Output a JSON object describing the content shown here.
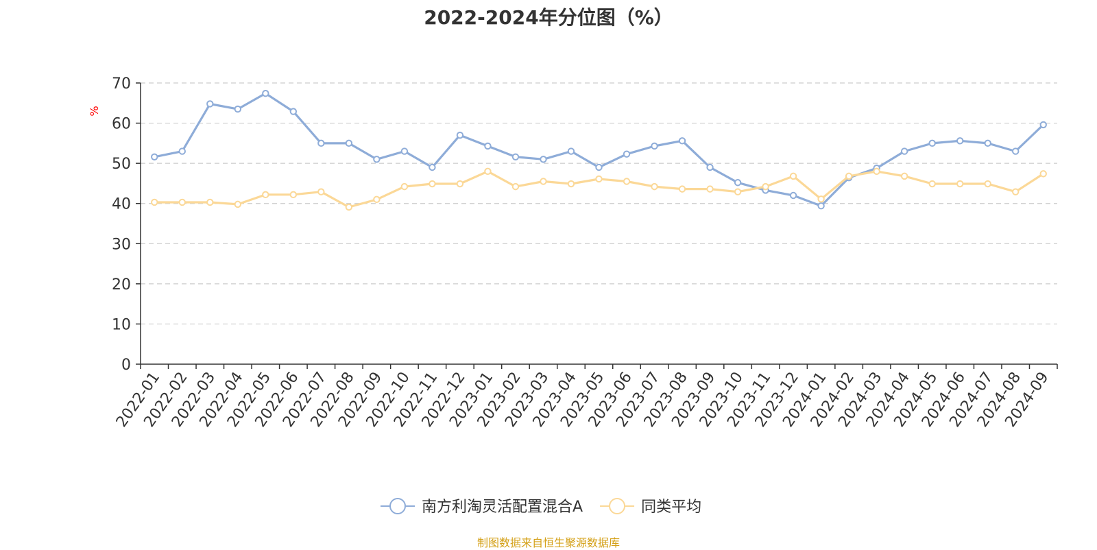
{
  "chart_data": {
    "type": "line",
    "title": "2022-2024年分位图（%）",
    "ylabel": "%",
    "xlabel": "",
    "ylim": [
      0,
      70
    ],
    "yticks": [
      0,
      10,
      20,
      30,
      40,
      50,
      60,
      70
    ],
    "grid": true,
    "legend_position": "bottom-center",
    "categories": [
      "2022-01",
      "2022-02",
      "2022-03",
      "2022-04",
      "2022-05",
      "2022-06",
      "2022-07",
      "2022-08",
      "2022-09",
      "2022-10",
      "2022-11",
      "2022-12",
      "2023-01",
      "2023-02",
      "2023-03",
      "2023-04",
      "2023-05",
      "2023-06",
      "2023-07",
      "2023-08",
      "2023-09",
      "2023-10",
      "2023-11",
      "2023-12",
      "2024-01",
      "2024-02",
      "2024-03",
      "2024-04",
      "2024-05",
      "2024-06",
      "2024-07",
      "2024-08",
      "2024-09"
    ],
    "series": [
      {
        "name": "南方利淘灵活配置混合A",
        "color": "#8eacd8",
        "values": [
          51.6,
          53.0,
          64.8,
          63.5,
          67.4,
          62.9,
          55.0,
          55.0,
          51.0,
          53.0,
          49.0,
          57.0,
          54.3,
          51.6,
          51.0,
          53.0,
          49.0,
          52.3,
          54.3,
          55.6,
          49.0,
          45.2,
          43.3,
          42.0,
          39.4,
          46.4,
          48.8,
          53.0,
          55.0,
          55.6,
          55.0,
          53.0,
          59.6
        ]
      },
      {
        "name": "同类平均",
        "color": "#fbd897",
        "values": [
          40.3,
          40.3,
          40.3,
          39.8,
          42.2,
          42.2,
          42.9,
          39.1,
          41.0,
          44.2,
          44.9,
          44.9,
          48.0,
          44.2,
          45.5,
          44.9,
          46.1,
          45.5,
          44.2,
          43.6,
          43.6,
          42.9,
          44.2,
          46.8,
          41.1,
          46.8,
          48.0,
          46.8,
          44.9,
          44.9,
          44.9,
          42.9,
          47.4
        ]
      }
    ]
  },
  "footer": {
    "source": "制图数据来自恒生聚源数据库"
  },
  "colors": {
    "axis": "#333333",
    "grid": "#cccccc",
    "ylabel": "#ff0000",
    "source": "#d4a017"
  }
}
